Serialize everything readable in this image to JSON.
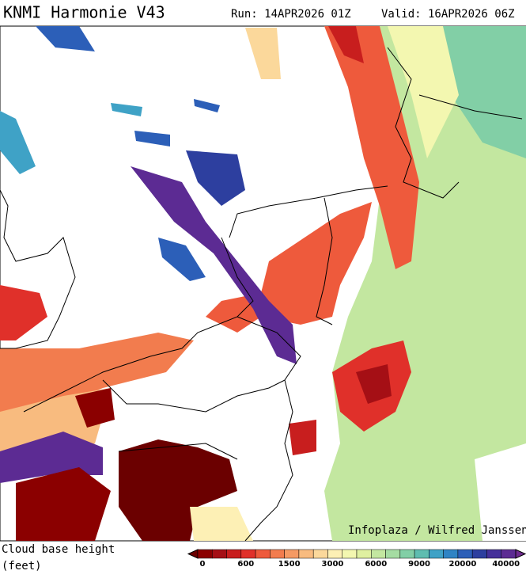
{
  "header": {
    "title": "KNMI Harmonie V43",
    "run": "Run: 14APR2026 01Z",
    "valid": "Valid: 16APR2026 06Z"
  },
  "map": {
    "credit": "Infoplaza / Wilfred Janssen"
  },
  "legend": {
    "label_line1": "Cloud base height",
    "label_line2": "(feet)",
    "colors": [
      "#6b0000",
      "#8b0000",
      "#a50f15",
      "#c81e1e",
      "#e0302a",
      "#ee5a3c",
      "#f27c4e",
      "#f59a64",
      "#f8bb7f",
      "#fbd89b",
      "#fdf0b5",
      "#f3f7b0",
      "#dff0a0",
      "#c3e7a0",
      "#a5dca2",
      "#82cfa6",
      "#5fbdb0",
      "#3fa2c6",
      "#2f84c4",
      "#2c5fb8",
      "#2d3f9f",
      "#45309a",
      "#5c2b93",
      "#6f2a8f"
    ],
    "ticks": [
      0,
      600,
      1500,
      3000,
      6000,
      9000,
      20000,
      40000
    ]
  }
}
